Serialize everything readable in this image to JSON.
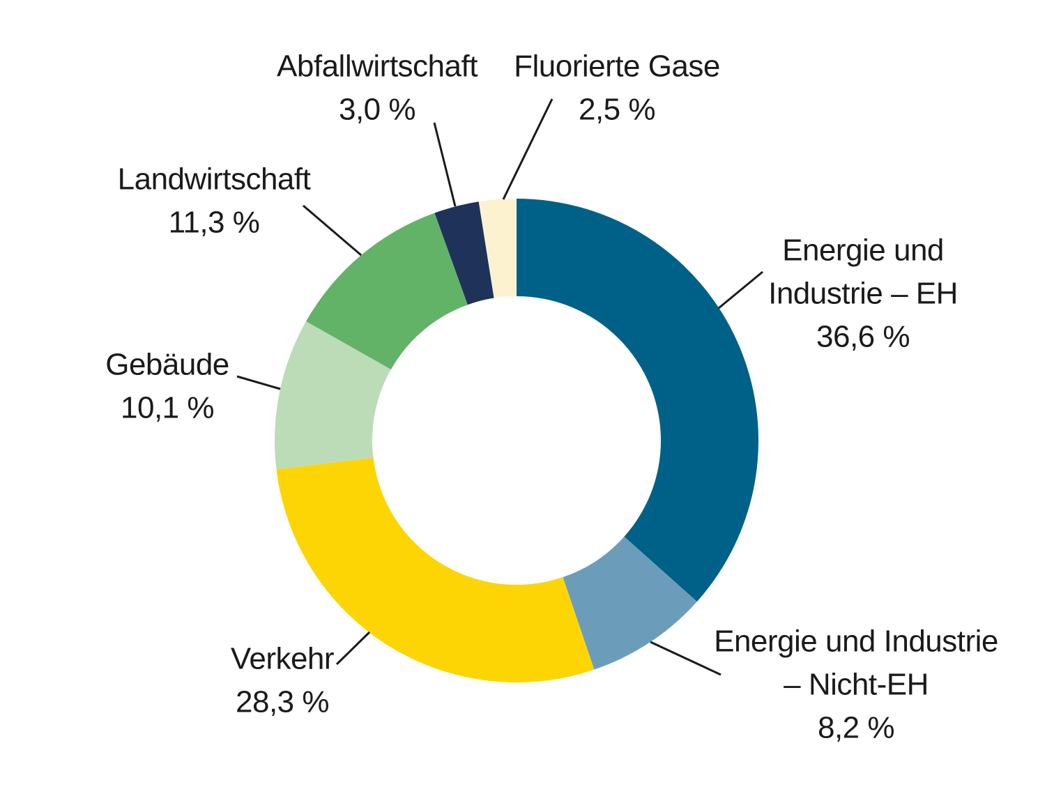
{
  "chart_data": {
    "type": "pie",
    "donut": true,
    "series": [
      {
        "label_lines": [
          "Energie und",
          "Industrie – EH"
        ],
        "value_text": "36,6 %",
        "value": 36.6,
        "color": "#006188"
      },
      {
        "label_lines": [
          "Energie und Industrie",
          "– Nicht-EH"
        ],
        "value_text": "8,2 %",
        "value": 8.2,
        "color": "#6b9dbb"
      },
      {
        "label_lines": [
          "Verkehr"
        ],
        "value_text": "28,3 %",
        "value": 28.3,
        "color": "#fdd504"
      },
      {
        "label_lines": [
          "Gebäude"
        ],
        "value_text": "10,1 %",
        "value": 10.1,
        "color": "#bcdcb8"
      },
      {
        "label_lines": [
          "Landwirtschaft"
        ],
        "value_text": "11,3 %",
        "value": 11.3,
        "color": "#62b368"
      },
      {
        "label_lines": [
          "Abfallwirtschaft"
        ],
        "value_text": "3,0 %",
        "value": 3.0,
        "color": "#1f325a"
      },
      {
        "label_lines": [
          "Fluorierte Gase"
        ],
        "value_text": "2,5 %",
        "value": 2.5,
        "color": "#fdf2d0"
      }
    ],
    "start_angle_deg": 0,
    "direction": "clockwise"
  }
}
